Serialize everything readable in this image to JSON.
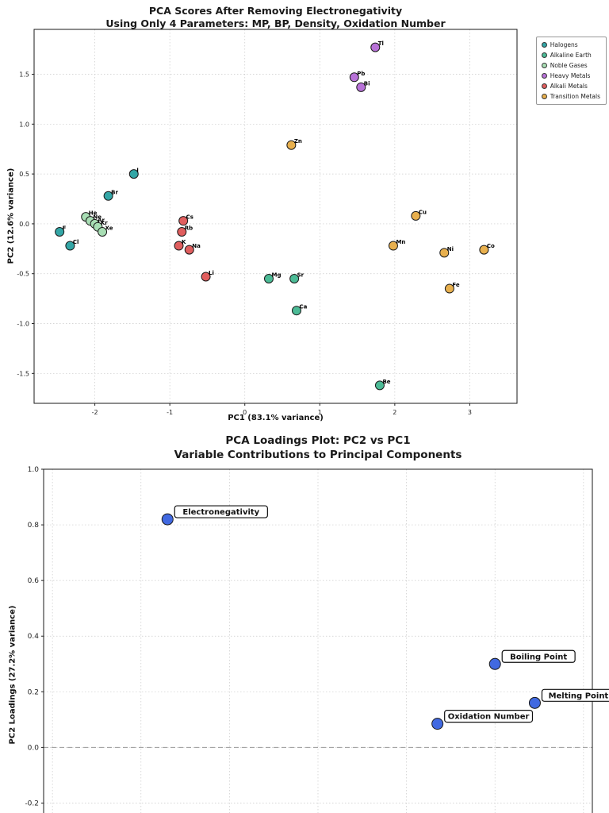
{
  "charts": [
    {
      "id": "pca-scores",
      "type": "scatter",
      "title": "PCA Scores After Removing Electronegativity",
      "subtitle": "Using Only 4 Parameters: MP, BP, Density, Oxidation Number",
      "xlabel": "PC1 (83.1% variance)",
      "ylabel": "PC2 (12.6% variance)",
      "xlim": [
        -2.81,
        3.63
      ],
      "ylim": [
        -1.8,
        1.95
      ],
      "xticks": [
        -2,
        -1,
        0,
        1,
        2,
        3
      ],
      "xtick_labels": [
        "-2",
        "-1",
        "0",
        "1",
        "2",
        "3"
      ],
      "yticks": [
        -1.5,
        -1.0,
        -0.5,
        0.0,
        0.5,
        1.0,
        1.5
      ],
      "ytick_labels": [
        "-1.5",
        "-1.0",
        "-0.5",
        "0.0",
        "0.5",
        "1.0",
        "1.5"
      ],
      "grid": true,
      "legend_position": "upper-right-outside",
      "series": [
        {
          "name": "Halogens",
          "color": "#33A6A6",
          "points": [
            {
              "label": "F",
              "x": -2.47,
              "y": -0.08
            },
            {
              "label": "Cl",
              "x": -2.33,
              "y": -0.22
            },
            {
              "label": "Br",
              "x": -1.82,
              "y": 0.28
            },
            {
              "label": "I",
              "x": -1.48,
              "y": 0.5
            }
          ]
        },
        {
          "name": "Alkaline Earth",
          "color": "#4CBB96",
          "points": [
            {
              "label": "Mg",
              "x": 0.32,
              "y": -0.55
            },
            {
              "label": "Sr",
              "x": 0.66,
              "y": -0.55
            },
            {
              "label": "Ca",
              "x": 0.69,
              "y": -0.87
            },
            {
              "label": "Be",
              "x": 1.8,
              "y": -1.62
            }
          ]
        },
        {
          "name": "Noble Gases",
          "color": "#A8DEB4",
          "points": [
            {
              "label": "He",
              "x": -2.12,
              "y": 0.07
            },
            {
              "label": "Ne",
              "x": -2.06,
              "y": 0.03
            },
            {
              "label": "Ar",
              "x": -2.0,
              "y": 0.0
            },
            {
              "label": "Kr",
              "x": -1.96,
              "y": -0.03
            },
            {
              "label": "Xe",
              "x": -1.9,
              "y": -0.08
            }
          ]
        },
        {
          "name": "Heavy Metals",
          "color": "#B872D8",
          "points": [
            {
              "label": "Tl",
              "x": 1.74,
              "y": 1.77
            },
            {
              "label": "Pb",
              "x": 1.46,
              "y": 1.47
            },
            {
              "label": "Bi",
              "x": 1.55,
              "y": 1.37
            }
          ]
        },
        {
          "name": "Alkali Metals",
          "color": "#E05E5E",
          "points": [
            {
              "label": "Cs",
              "x": -0.82,
              "y": 0.03
            },
            {
              "label": "Rb",
              "x": -0.84,
              "y": -0.08
            },
            {
              "label": "K",
              "x": -0.88,
              "y": -0.22
            },
            {
              "label": "Na",
              "x": -0.74,
              "y": -0.26
            },
            {
              "label": "Li",
              "x": -0.52,
              "y": -0.53
            }
          ]
        },
        {
          "name": "Transition Metals",
          "color": "#E8B04E",
          "points": [
            {
              "label": "Zn",
              "x": 0.62,
              "y": 0.79
            },
            {
              "label": "Cu",
              "x": 2.28,
              "y": 0.08
            },
            {
              "label": "Mn",
              "x": 1.98,
              "y": -0.22
            },
            {
              "label": "Ni",
              "x": 2.66,
              "y": -0.29
            },
            {
              "label": "Co",
              "x": 3.19,
              "y": -0.26
            },
            {
              "label": "Fe",
              "x": 2.73,
              "y": -0.65
            }
          ]
        }
      ]
    },
    {
      "id": "pca-loadings",
      "type": "scatter",
      "title": "PCA Loadings Plot: PC2 vs PC1",
      "subtitle": "Variable Contributions to Principal Components",
      "ylabel": "PC2 Loadings (27.2% variance)",
      "xlim": [
        -0.22,
        1.02
      ],
      "ylim": [
        -0.25,
        1.0
      ],
      "xticks": [
        -0.2,
        0.0,
        0.2,
        0.4,
        0.6,
        0.8,
        1.0
      ],
      "yticks": [
        -0.2,
        0.0,
        0.2,
        0.4,
        0.6,
        0.8,
        1.0
      ],
      "ytick_labels": [
        "-0.2",
        "0.0",
        "0.2",
        "0.4",
        "0.6",
        "0.8",
        "1.0"
      ],
      "grid": true,
      "zero_line": true,
      "label_style": "boxed",
      "series": [
        {
          "name": "Variables",
          "color": "#4169E1",
          "points": [
            {
              "label": "Electronegativity",
              "x": 0.06,
              "y": 0.82
            },
            {
              "label": "Boiling Point",
              "x": 0.8,
              "y": 0.3
            },
            {
              "label": "Melting Point",
              "x": 0.89,
              "y": 0.16
            },
            {
              "label": "Oxidation Number",
              "x": 0.67,
              "y": 0.085
            }
          ]
        }
      ]
    }
  ]
}
